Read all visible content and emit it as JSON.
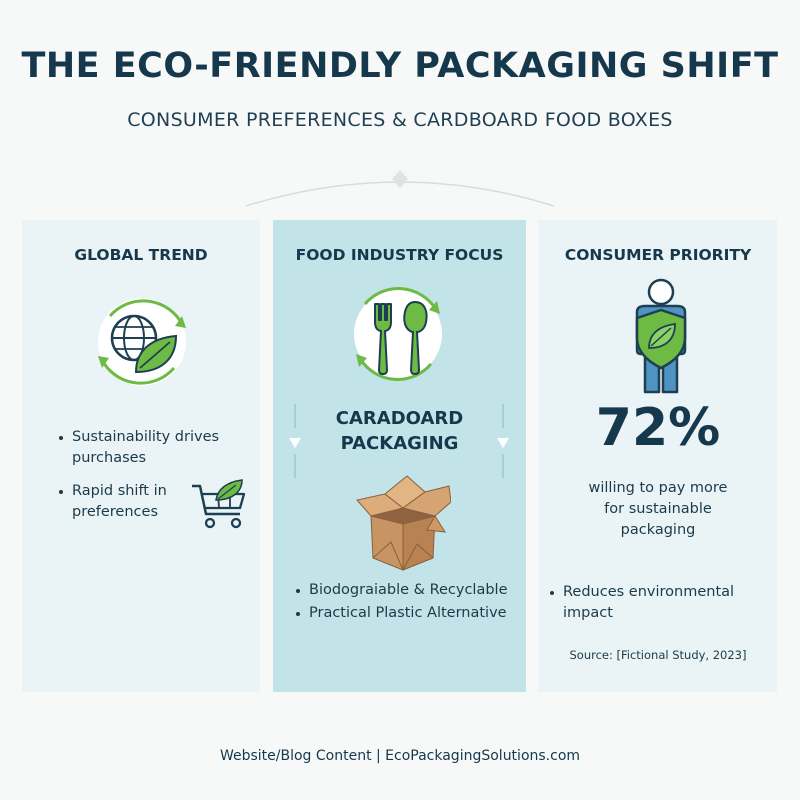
{
  "header": {
    "title": "THE ECO-FRIENDLY PACKAGING SHIFT",
    "subtitle": "CONSUMER PREFERENCES & CARDBOARD FOOD BOXES"
  },
  "panels": {
    "left": {
      "title": "GLOBAL TREND",
      "bullets": [
        "Sustainability drives purchases",
        "Rapid shift in preferences"
      ],
      "icon": "globe-leaf-icon"
    },
    "middle": {
      "title": "FOOD INDUSTRY FOCUS",
      "heading_line1": "CARADOARD",
      "heading_line2": "PACKAGING",
      "bullets": [
        "Biodograiable & Recyclable",
        "Practical Plastic Alternative"
      ],
      "icon": "fork-spoon-icon"
    },
    "right": {
      "title": "CONSUMER PRIORITY",
      "percent": "72%",
      "percent_label_line1": "willing to pay more",
      "percent_label_line2": "for sustainable",
      "percent_label_line3": "packaging",
      "bullets": [
        "Reduces environmental impact"
      ],
      "source": "Source: [Fictional Study, 2023]",
      "icon": "person-shield-icon"
    }
  },
  "footer": {
    "text": "Website/Blog Content | EcoPackagingSolutions.com"
  },
  "colors": {
    "navy": "#15384c",
    "green": "#6dbb45",
    "panel_light": "#eaf3f6",
    "panel_teal": "#c2e3e7",
    "cardboard": "#d9a878"
  }
}
